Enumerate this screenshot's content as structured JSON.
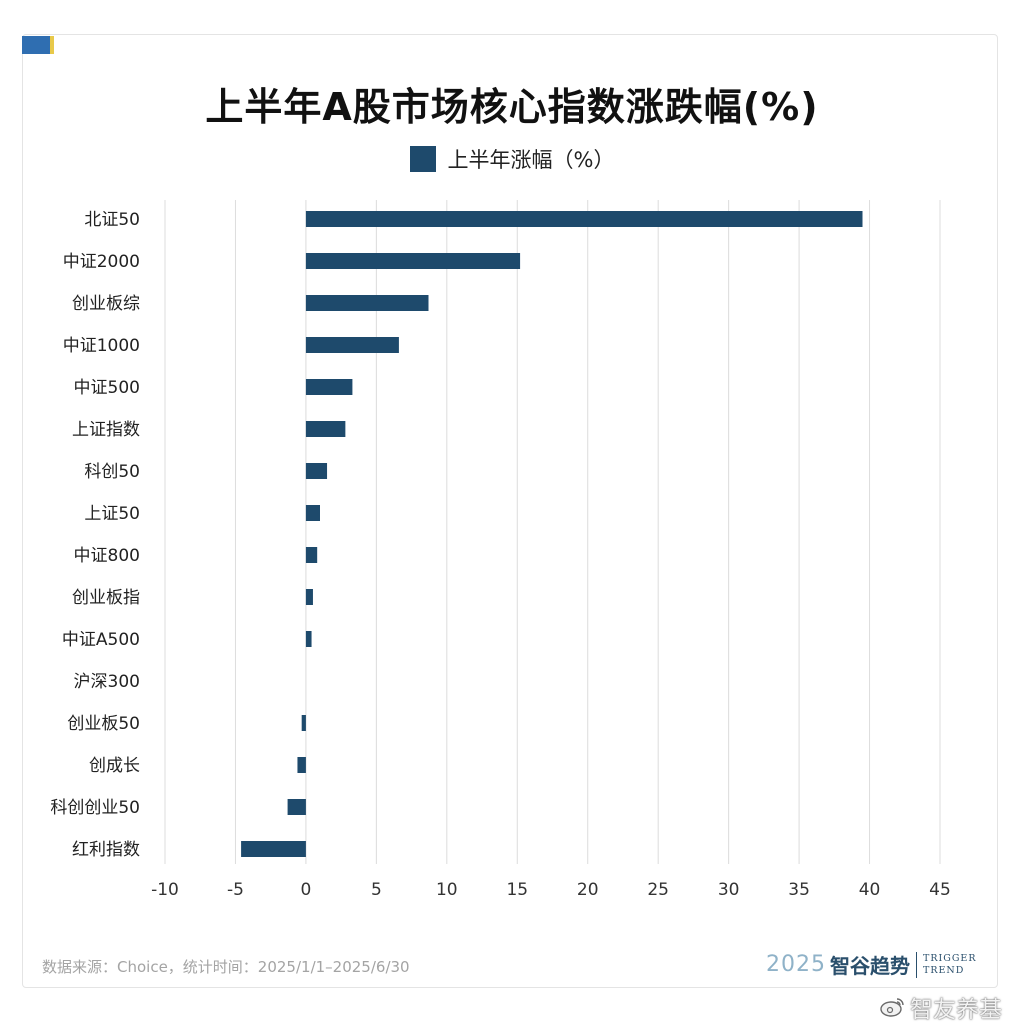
{
  "title": "上半年A股市场核心指数涨跌幅(%)",
  "legend_label": "上半年涨幅（%）",
  "colors": {
    "bar": "#1e4a6c",
    "grid": "#dcdcdc",
    "corner_blue": "#2f6eb1",
    "corner_yellow": "#e8c94a"
  },
  "chart_data": {
    "type": "bar",
    "orientation": "horizontal",
    "categories": [
      "北证50",
      "中证2000",
      "创业板综",
      "中证1000",
      "中证500",
      "上证指数",
      "科创50",
      "上证50",
      "中证800",
      "创业板指",
      "中证A500",
      "沪深300",
      "创业板50",
      "创成长",
      "科创创业50",
      "红利指数"
    ],
    "series": [
      {
        "name": "上半年涨幅（%）",
        "values": [
          39.5,
          15.2,
          8.7,
          6.6,
          3.3,
          2.8,
          1.5,
          1.0,
          0.8,
          0.5,
          0.4,
          0.0,
          -0.3,
          -0.6,
          -1.3,
          -4.6
        ]
      }
    ],
    "xlim": [
      -10,
      45
    ],
    "xticks": [
      "-10",
      "-5",
      "0",
      "5",
      "10",
      "15",
      "20",
      "25",
      "30",
      "35",
      "40",
      "45"
    ],
    "grid": true,
    "legend_position": "top"
  },
  "footer": {
    "source": "数据来源：Choice，统计时间：2025/1/1–2025/6/30",
    "brand_year": "2025",
    "brand_name": "智谷趋势",
    "brand_en_1": "TRIGGER",
    "brand_en_2": "TREND"
  },
  "watermark": "智友养基"
}
